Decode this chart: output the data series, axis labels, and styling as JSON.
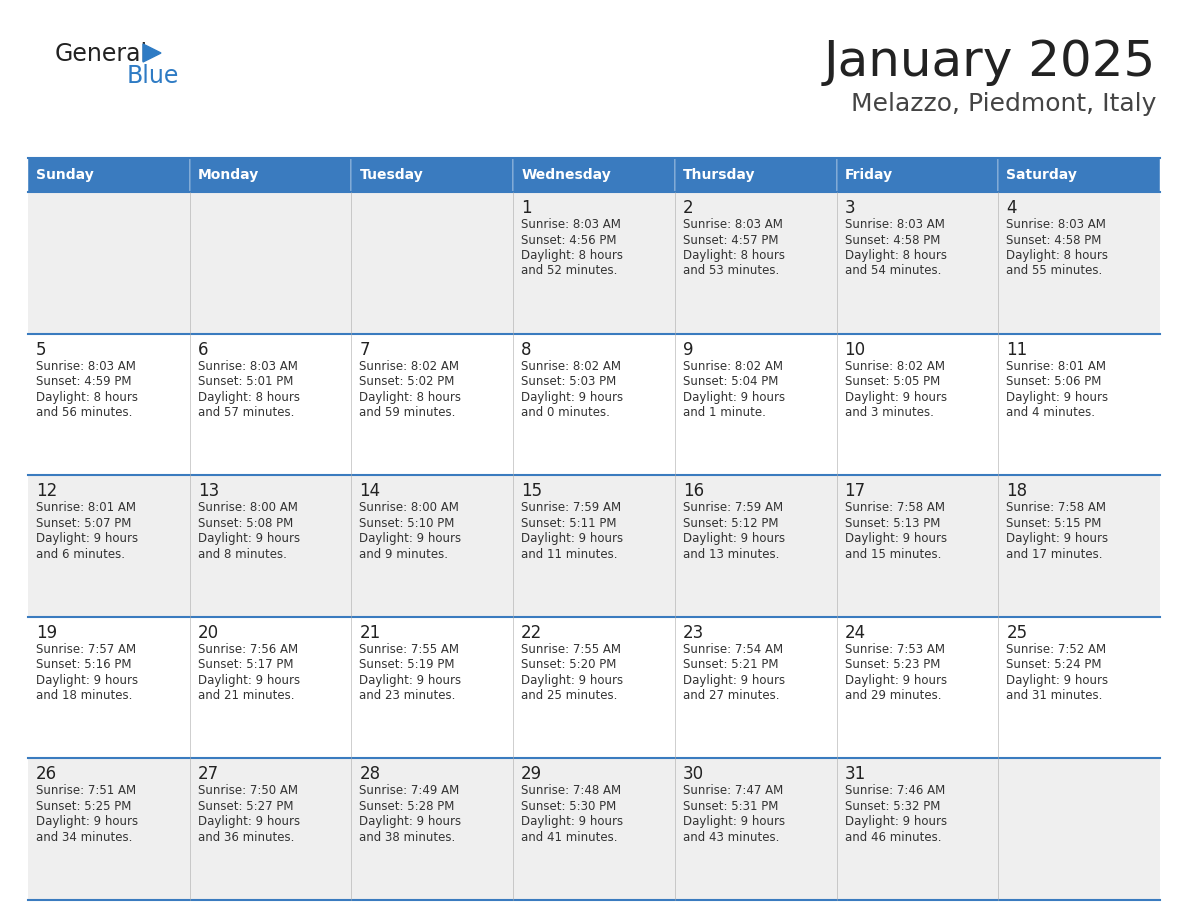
{
  "title": "January 2025",
  "subtitle": "Melazzo, Piedmont, Italy",
  "days_of_week": [
    "Sunday",
    "Monday",
    "Tuesday",
    "Wednesday",
    "Thursday",
    "Friday",
    "Saturday"
  ],
  "header_bg": "#3a7bbf",
  "header_text": "#ffffff",
  "row_bg_odd": "#efefef",
  "row_bg_even": "#ffffff",
  "border_color": "#3a7bbf",
  "title_color": "#222222",
  "subtitle_color": "#444444",
  "cell_text_color": "#333333",
  "day_number_color": "#222222",
  "logo_general_color": "#222222",
  "logo_blue_color": "#2e7bc4",
  "fig_width": 11.88,
  "fig_height": 9.18,
  "dpi": 100,
  "calendar": [
    [
      null,
      null,
      null,
      {
        "day": 1,
        "sunrise": "8:03 AM",
        "sunset": "4:56 PM",
        "daylight": "8 hours",
        "daylight2": "and 52 minutes."
      },
      {
        "day": 2,
        "sunrise": "8:03 AM",
        "sunset": "4:57 PM",
        "daylight": "8 hours",
        "daylight2": "and 53 minutes."
      },
      {
        "day": 3,
        "sunrise": "8:03 AM",
        "sunset": "4:58 PM",
        "daylight": "8 hours",
        "daylight2": "and 54 minutes."
      },
      {
        "day": 4,
        "sunrise": "8:03 AM",
        "sunset": "4:58 PM",
        "daylight": "8 hours",
        "daylight2": "and 55 minutes."
      }
    ],
    [
      {
        "day": 5,
        "sunrise": "8:03 AM",
        "sunset": "4:59 PM",
        "daylight": "8 hours",
        "daylight2": "and 56 minutes."
      },
      {
        "day": 6,
        "sunrise": "8:03 AM",
        "sunset": "5:01 PM",
        "daylight": "8 hours",
        "daylight2": "and 57 minutes."
      },
      {
        "day": 7,
        "sunrise": "8:02 AM",
        "sunset": "5:02 PM",
        "daylight": "8 hours",
        "daylight2": "and 59 minutes."
      },
      {
        "day": 8,
        "sunrise": "8:02 AM",
        "sunset": "5:03 PM",
        "daylight": "9 hours",
        "daylight2": "and 0 minutes."
      },
      {
        "day": 9,
        "sunrise": "8:02 AM",
        "sunset": "5:04 PM",
        "daylight": "9 hours",
        "daylight2": "and 1 minute."
      },
      {
        "day": 10,
        "sunrise": "8:02 AM",
        "sunset": "5:05 PM",
        "daylight": "9 hours",
        "daylight2": "and 3 minutes."
      },
      {
        "day": 11,
        "sunrise": "8:01 AM",
        "sunset": "5:06 PM",
        "daylight": "9 hours",
        "daylight2": "and 4 minutes."
      }
    ],
    [
      {
        "day": 12,
        "sunrise": "8:01 AM",
        "sunset": "5:07 PM",
        "daylight": "9 hours",
        "daylight2": "and 6 minutes."
      },
      {
        "day": 13,
        "sunrise": "8:00 AM",
        "sunset": "5:08 PM",
        "daylight": "9 hours",
        "daylight2": "and 8 minutes."
      },
      {
        "day": 14,
        "sunrise": "8:00 AM",
        "sunset": "5:10 PM",
        "daylight": "9 hours",
        "daylight2": "and 9 minutes."
      },
      {
        "day": 15,
        "sunrise": "7:59 AM",
        "sunset": "5:11 PM",
        "daylight": "9 hours",
        "daylight2": "and 11 minutes."
      },
      {
        "day": 16,
        "sunrise": "7:59 AM",
        "sunset": "5:12 PM",
        "daylight": "9 hours",
        "daylight2": "and 13 minutes."
      },
      {
        "day": 17,
        "sunrise": "7:58 AM",
        "sunset": "5:13 PM",
        "daylight": "9 hours",
        "daylight2": "and 15 minutes."
      },
      {
        "day": 18,
        "sunrise": "7:58 AM",
        "sunset": "5:15 PM",
        "daylight": "9 hours",
        "daylight2": "and 17 minutes."
      }
    ],
    [
      {
        "day": 19,
        "sunrise": "7:57 AM",
        "sunset": "5:16 PM",
        "daylight": "9 hours",
        "daylight2": "and 18 minutes."
      },
      {
        "day": 20,
        "sunrise": "7:56 AM",
        "sunset": "5:17 PM",
        "daylight": "9 hours",
        "daylight2": "and 21 minutes."
      },
      {
        "day": 21,
        "sunrise": "7:55 AM",
        "sunset": "5:19 PM",
        "daylight": "9 hours",
        "daylight2": "and 23 minutes."
      },
      {
        "day": 22,
        "sunrise": "7:55 AM",
        "sunset": "5:20 PM",
        "daylight": "9 hours",
        "daylight2": "and 25 minutes."
      },
      {
        "day": 23,
        "sunrise": "7:54 AM",
        "sunset": "5:21 PM",
        "daylight": "9 hours",
        "daylight2": "and 27 minutes."
      },
      {
        "day": 24,
        "sunrise": "7:53 AM",
        "sunset": "5:23 PM",
        "daylight": "9 hours",
        "daylight2": "and 29 minutes."
      },
      {
        "day": 25,
        "sunrise": "7:52 AM",
        "sunset": "5:24 PM",
        "daylight": "9 hours",
        "daylight2": "and 31 minutes."
      }
    ],
    [
      {
        "day": 26,
        "sunrise": "7:51 AM",
        "sunset": "5:25 PM",
        "daylight": "9 hours",
        "daylight2": "and 34 minutes."
      },
      {
        "day": 27,
        "sunrise": "7:50 AM",
        "sunset": "5:27 PM",
        "daylight": "9 hours",
        "daylight2": "and 36 minutes."
      },
      {
        "day": 28,
        "sunrise": "7:49 AM",
        "sunset": "5:28 PM",
        "daylight": "9 hours",
        "daylight2": "and 38 minutes."
      },
      {
        "day": 29,
        "sunrise": "7:48 AM",
        "sunset": "5:30 PM",
        "daylight": "9 hours",
        "daylight2": "and 41 minutes."
      },
      {
        "day": 30,
        "sunrise": "7:47 AM",
        "sunset": "5:31 PM",
        "daylight": "9 hours",
        "daylight2": "and 43 minutes."
      },
      {
        "day": 31,
        "sunrise": "7:46 AM",
        "sunset": "5:32 PM",
        "daylight": "9 hours",
        "daylight2": "and 46 minutes."
      },
      null
    ]
  ]
}
